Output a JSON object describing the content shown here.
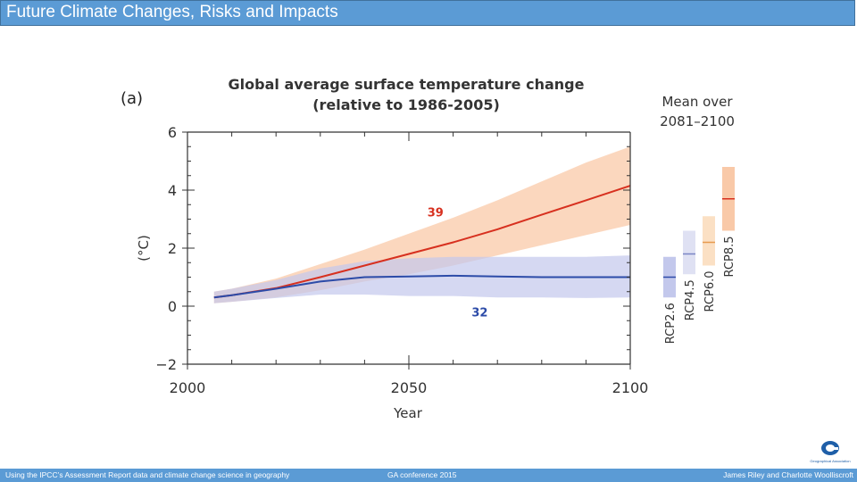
{
  "slide": {
    "title": "Future Climate Changes, Risks and Impacts"
  },
  "footer": {
    "left": "Using the IPCC’s Assessment Report data and climate change science in geography",
    "center": "GA conference 2015",
    "right": "James Riley and Charlotte Woolliscroft"
  },
  "logo": {
    "icon": "geographical-association-logo",
    "text": "Geographical Association"
  },
  "colors": {
    "accent": "#5b9bd5",
    "rcp85": "#d7301f",
    "rcp85_band": "#f9c9a8",
    "rcp26": "#2c4ba8",
    "rcp26_band": "#c3c8ec"
  },
  "chart_data": {
    "type": "line",
    "panel_label": "(a)",
    "title": "Global average surface temperature change",
    "subtitle": "(relative to 1986-2005)",
    "xlabel": "Year",
    "ylabel": "(°C)",
    "xlim": [
      2000,
      2100
    ],
    "ylim": [
      -2,
      6
    ],
    "xticks": [
      2000,
      2050,
      2100
    ],
    "yticks": [
      -2,
      0,
      2,
      4,
      6
    ],
    "grid": false,
    "series": [
      {
        "name": "RCP8.5",
        "label": "39",
        "x": [
          2006,
          2010,
          2020,
          2030,
          2040,
          2050,
          2060,
          2070,
          2080,
          2090,
          2100
        ],
        "y": [
          0.3,
          0.38,
          0.62,
          1.0,
          1.4,
          1.8,
          2.2,
          2.65,
          3.15,
          3.65,
          4.15
        ],
        "band_low": [
          0.1,
          0.15,
          0.3,
          0.55,
          0.85,
          1.1,
          1.4,
          1.75,
          2.1,
          2.45,
          2.8
        ],
        "band_high": [
          0.5,
          0.6,
          0.95,
          1.45,
          1.95,
          2.5,
          3.05,
          3.65,
          4.3,
          4.95,
          5.5
        ]
      },
      {
        "name": "RCP2.6",
        "label": "32",
        "x": [
          2006,
          2010,
          2020,
          2030,
          2040,
          2050,
          2060,
          2070,
          2080,
          2090,
          2100
        ],
        "y": [
          0.3,
          0.38,
          0.6,
          0.85,
          1.0,
          1.02,
          1.05,
          1.02,
          1.0,
          1.0,
          1.0
        ],
        "band_low": [
          0.1,
          0.15,
          0.28,
          0.4,
          0.4,
          0.35,
          0.35,
          0.3,
          0.3,
          0.28,
          0.3
        ],
        "band_high": [
          0.5,
          0.6,
          0.9,
          1.3,
          1.55,
          1.65,
          1.7,
          1.7,
          1.7,
          1.7,
          1.75
        ]
      }
    ],
    "side_panel": {
      "title_line1": "Mean over",
      "title_line2": "2081–2100",
      "bars": [
        {
          "name": "RCP2.6",
          "mean": 1.0,
          "low": 0.3,
          "high": 1.7,
          "color": "#2c4ba8",
          "fill": "#c3c8ec"
        },
        {
          "name": "RCP4.5",
          "mean": 1.8,
          "low": 1.1,
          "high": 2.6,
          "color": "#7a86c4",
          "fill": "#dfe1f3"
        },
        {
          "name": "RCP6.0",
          "mean": 2.2,
          "low": 1.4,
          "high": 3.1,
          "color": "#e79a4e",
          "fill": "#fbe0c4"
        },
        {
          "name": "RCP8.5",
          "mean": 3.7,
          "low": 2.6,
          "high": 4.8,
          "color": "#d7301f",
          "fill": "#f9c9a8"
        }
      ]
    }
  }
}
